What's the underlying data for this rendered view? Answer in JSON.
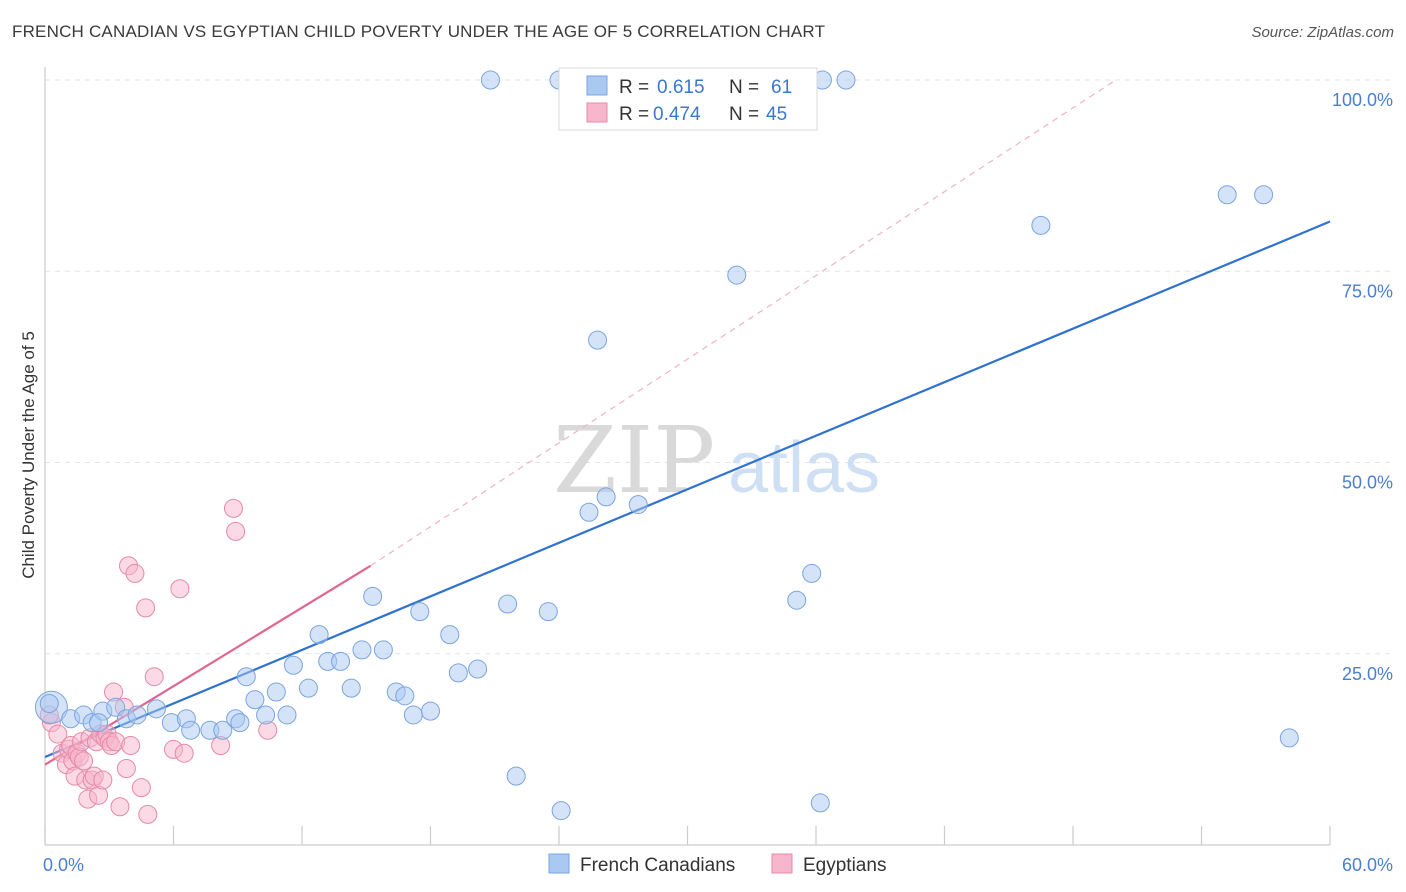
{
  "header": {
    "title": "FRENCH CANADIAN VS EGYPTIAN CHILD POVERTY UNDER THE AGE OF 5 CORRELATION CHART",
    "source": "Source: ZipAtlas.com"
  },
  "watermark": {
    "zip": "ZIP",
    "atlas": "atlas"
  },
  "legend_top": {
    "rows": [
      {
        "r_label": "R = ",
        "r_value": "0.615",
        "n_label": "N = ",
        "n_value": "61",
        "color": "#a9c8f2"
      },
      {
        "r_label": "R = ",
        "r_value": "0.474",
        "n_label": "N = ",
        "n_value": "45",
        "color": "#f7b6cb"
      }
    ]
  },
  "legend_bottom": {
    "items": [
      {
        "label": "French Canadians",
        "color": "#a9c8f2"
      },
      {
        "label": "Egyptians",
        "color": "#f7b6cb"
      }
    ]
  },
  "chart_data": {
    "type": "scatter",
    "xlabel": "",
    "ylabel": "Child Poverty Under the Age of 5",
    "xlim": [
      0,
      60
    ],
    "ylim": [
      0,
      100
    ],
    "x_tick_labels": [
      "0.0%",
      "60.0%"
    ],
    "y_ticks": [
      25,
      50,
      75,
      100
    ],
    "y_tick_labels": [
      "25.0%",
      "50.0%",
      "75.0%",
      "100.0%"
    ],
    "grid": true,
    "colors": {
      "french": "#a9c8f2",
      "french_line": "#2f72cf",
      "egyptian": "#f7b6cb",
      "egyptian_line": "#e0668f"
    },
    "series": [
      {
        "name": "French Canadians",
        "r": 0.615,
        "n": 61,
        "trend": {
          "x": [
            0,
            60
          ],
          "y": [
            11.5,
            81.5
          ]
        },
        "points": [
          [
            0.3,
            18.0
          ],
          [
            1.2,
            16.5
          ],
          [
            1.8,
            17.0
          ],
          [
            2.2,
            16.0
          ],
          [
            2.7,
            17.5
          ],
          [
            3.3,
            18.0
          ],
          [
            3.8,
            16.5
          ],
          [
            4.3,
            17.0
          ],
          [
            5.2,
            17.8
          ],
          [
            5.9,
            16.0
          ],
          [
            6.6,
            16.5
          ],
          [
            6.8,
            15.0
          ],
          [
            7.7,
            15.0
          ],
          [
            8.3,
            15.0
          ],
          [
            8.9,
            16.5
          ],
          [
            9.1,
            16.0
          ],
          [
            9.4,
            22.0
          ],
          [
            9.8,
            19.0
          ],
          [
            10.3,
            17.0
          ],
          [
            10.8,
            20.0
          ],
          [
            11.3,
            17.0
          ],
          [
            11.6,
            23.5
          ],
          [
            12.3,
            20.5
          ],
          [
            12.8,
            27.5
          ],
          [
            13.2,
            24.0
          ],
          [
            13.8,
            24.0
          ],
          [
            14.3,
            20.5
          ],
          [
            14.8,
            25.5
          ],
          [
            15.3,
            32.5
          ],
          [
            15.8,
            25.5
          ],
          [
            16.4,
            20.0
          ],
          [
            16.8,
            19.5
          ],
          [
            17.2,
            17.0
          ],
          [
            17.5,
            30.5
          ],
          [
            18.0,
            17.5
          ],
          [
            18.9,
            27.5
          ],
          [
            19.3,
            22.5
          ],
          [
            20.2,
            23.0
          ],
          [
            20.8,
            100.0
          ],
          [
            21.6,
            31.5
          ],
          [
            22.0,
            9.0
          ],
          [
            23.5,
            30.5
          ],
          [
            24.0,
            100.0
          ],
          [
            24.1,
            4.5
          ],
          [
            25.4,
            43.5
          ],
          [
            25.8,
            66.0
          ],
          [
            26.2,
            45.5
          ],
          [
            27.7,
            44.5
          ],
          [
            29.7,
            100.0
          ],
          [
            32.3,
            74.5
          ],
          [
            35.1,
            32.0
          ],
          [
            35.8,
            35.5
          ],
          [
            36.2,
            5.5
          ],
          [
            36.3,
            100.0
          ],
          [
            37.4,
            100.0
          ],
          [
            46.5,
            81.0
          ],
          [
            55.2,
            85.0
          ],
          [
            56.9,
            85.0
          ],
          [
            58.1,
            14.0
          ],
          [
            0.2,
            18.5
          ],
          [
            2.5,
            16.0
          ]
        ]
      },
      {
        "name": "Egyptians",
        "r": 0.474,
        "n": 45,
        "trend": {
          "x": [
            0,
            15.2
          ],
          "y": [
            10.5,
            36.5
          ]
        },
        "trend_ext": {
          "x": [
            15.2,
            50.0
          ],
          "y": [
            36.5,
            100.0
          ]
        },
        "points": [
          [
            0.3,
            16.0
          ],
          [
            0.6,
            14.5
          ],
          [
            0.8,
            12.0
          ],
          [
            1.0,
            10.5
          ],
          [
            1.1,
            12.5
          ],
          [
            1.2,
            13.0
          ],
          [
            1.3,
            11.0
          ],
          [
            1.4,
            9.0
          ],
          [
            1.5,
            12.0
          ],
          [
            1.6,
            11.5
          ],
          [
            1.7,
            13.5
          ],
          [
            1.8,
            11.0
          ],
          [
            1.9,
            8.5
          ],
          [
            2.0,
            6.0
          ],
          [
            2.1,
            14.0
          ],
          [
            2.2,
            8.5
          ],
          [
            2.3,
            9.0
          ],
          [
            2.4,
            13.5
          ],
          [
            2.5,
            6.5
          ],
          [
            2.6,
            14.5
          ],
          [
            2.7,
            8.5
          ],
          [
            2.8,
            14.0
          ],
          [
            2.9,
            14.5
          ],
          [
            3.0,
            13.5
          ],
          [
            3.1,
            13.0
          ],
          [
            3.2,
            20.0
          ],
          [
            3.3,
            13.5
          ],
          [
            3.5,
            5.0
          ],
          [
            3.7,
            18.0
          ],
          [
            3.8,
            10.0
          ],
          [
            3.9,
            36.5
          ],
          [
            4.0,
            13.0
          ],
          [
            4.2,
            35.5
          ],
          [
            4.5,
            7.5
          ],
          [
            4.7,
            31.0
          ],
          [
            4.8,
            4.0
          ],
          [
            5.1,
            22.0
          ],
          [
            6.0,
            12.5
          ],
          [
            6.3,
            33.5
          ],
          [
            6.5,
            12.0
          ],
          [
            8.2,
            13.0
          ],
          [
            8.8,
            44.0
          ],
          [
            8.9,
            41.0
          ],
          [
            10.4,
            15.0
          ],
          [
            0.2,
            17.0
          ]
        ]
      }
    ]
  }
}
